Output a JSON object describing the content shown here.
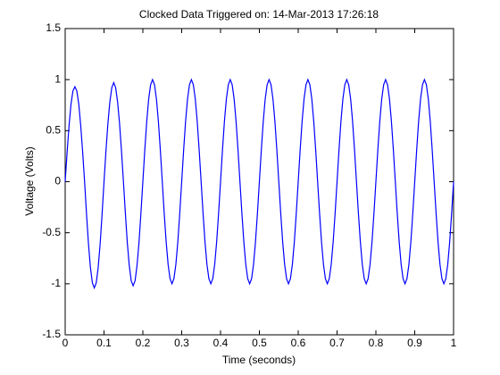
{
  "chart_data": {
    "type": "line",
    "title": "Clocked Data Triggered on: 14-Mar-2013 17:26:18",
    "x_label": "Time (seconds)",
    "y_label": "Voltage (Volts)",
    "xlim": [
      0,
      1
    ],
    "ylim": [
      -1.5,
      1.5
    ],
    "xticks": [
      0,
      0.1,
      0.2,
      0.3,
      0.4,
      0.5,
      0.6,
      0.7,
      0.8,
      0.9,
      1
    ],
    "yticks": [
      -1.5,
      -1,
      -0.5,
      0,
      0.5,
      1,
      1.5
    ],
    "grid": false,
    "x": [
      0,
      0.005,
      0.01,
      0.015,
      0.02,
      0.025,
      0.03,
      0.035,
      0.04,
      0.045,
      0.05,
      0.055,
      0.06,
      0.065,
      0.07,
      0.075,
      0.08,
      0.085,
      0.09,
      0.095,
      0.1,
      0.105,
      0.11,
      0.115,
      0.12,
      0.125,
      0.13,
      0.135,
      0.14,
      0.145,
      0.15,
      0.155,
      0.16,
      0.165,
      0.17,
      0.175,
      0.18,
      0.185,
      0.19,
      0.195,
      0.2,
      0.205,
      0.21,
      0.215,
      0.22,
      0.225,
      0.23,
      0.235,
      0.24,
      0.245,
      0.25,
      0.255,
      0.26,
      0.265,
      0.27,
      0.275,
      0.28,
      0.285,
      0.29,
      0.295,
      0.3,
      0.305,
      0.31,
      0.315,
      0.32,
      0.325,
      0.33,
      0.335,
      0.34,
      0.345,
      0.35,
      0.355,
      0.36,
      0.365,
      0.37,
      0.375,
      0.38,
      0.385,
      0.39,
      0.395,
      0.4,
      0.405,
      0.41,
      0.415,
      0.42,
      0.425,
      0.43,
      0.435,
      0.44,
      0.445,
      0.45,
      0.455,
      0.46,
      0.465,
      0.47,
      0.475,
      0.48,
      0.485,
      0.49,
      0.495,
      0.5,
      0.505,
      0.51,
      0.515,
      0.52,
      0.525,
      0.53,
      0.535,
      0.54,
      0.545,
      0.55,
      0.555,
      0.56,
      0.565,
      0.57,
      0.575,
      0.58,
      0.585,
      0.59,
      0.595,
      0.6,
      0.605,
      0.61,
      0.615,
      0.62,
      0.625,
      0.63,
      0.635,
      0.64,
      0.645,
      0.65,
      0.655,
      0.66,
      0.665,
      0.67,
      0.675,
      0.68,
      0.685,
      0.69,
      0.695,
      0.7,
      0.705,
      0.71,
      0.715,
      0.72,
      0.725,
      0.73,
      0.735,
      0.74,
      0.745,
      0.75,
      0.755,
      0.76,
      0.765,
      0.77,
      0.775,
      0.78,
      0.785,
      0.79,
      0.795,
      0.8,
      0.805,
      0.81,
      0.815,
      0.82,
      0.825,
      0.83,
      0.835,
      0.84,
      0.845,
      0.85,
      0.855,
      0.86,
      0.865,
      0.87,
      0.875,
      0.88,
      0.885,
      0.89,
      0.895,
      0.9,
      0.905,
      0.91,
      0.915,
      0.92,
      0.925,
      0.93,
      0.935,
      0.94,
      0.945,
      0.95,
      0.955,
      0.96,
      0.965,
      0.97,
      0.975,
      0.98,
      0.985,
      0.99,
      0.995,
      1
    ],
    "series": [
      {
        "color": "#0000ff",
        "values": [
          0,
          0.29,
          0.55,
          0.76,
          0.89,
          0.93,
          0.89,
          0.76,
          0.55,
          0.29,
          0,
          -0.32,
          -0.61,
          -0.84,
          -0.99,
          -1.04,
          -0.99,
          -0.84,
          -0.61,
          -0.32,
          0,
          0.3,
          0.57,
          0.78,
          0.92,
          0.97,
          0.92,
          0.78,
          0.57,
          0.3,
          0,
          -0.31,
          -0.6,
          -0.82,
          -0.97,
          -1.02,
          -0.97,
          -0.82,
          -0.6,
          -0.31,
          0,
          0.31,
          0.59,
          0.81,
          0.95,
          1,
          0.95,
          0.81,
          0.59,
          0.31,
          0,
          -0.31,
          -0.59,
          -0.81,
          -0.95,
          -1,
          -0.95,
          -0.81,
          -0.59,
          -0.31,
          0,
          0.31,
          0.59,
          0.81,
          0.95,
          1,
          0.95,
          0.81,
          0.59,
          0.31,
          0,
          -0.31,
          -0.59,
          -0.81,
          -0.95,
          -1,
          -0.95,
          -0.81,
          -0.59,
          -0.31,
          0,
          0.31,
          0.59,
          0.81,
          0.95,
          1,
          0.95,
          0.81,
          0.59,
          0.31,
          0,
          -0.31,
          -0.59,
          -0.81,
          -0.95,
          -1,
          -0.95,
          -0.81,
          -0.59,
          -0.31,
          0,
          0.31,
          0.59,
          0.81,
          0.95,
          1,
          0.95,
          0.81,
          0.59,
          0.31,
          0,
          -0.31,
          -0.59,
          -0.81,
          -0.95,
          -1,
          -0.95,
          -0.81,
          -0.59,
          -0.31,
          0,
          0.31,
          0.59,
          0.81,
          0.95,
          1,
          0.95,
          0.81,
          0.59,
          0.31,
          0,
          -0.31,
          -0.59,
          -0.81,
          -0.95,
          -1,
          -0.95,
          -0.81,
          -0.59,
          -0.31,
          0,
          0.31,
          0.59,
          0.81,
          0.95,
          1,
          0.95,
          0.81,
          0.59,
          0.31,
          0,
          -0.31,
          -0.59,
          -0.81,
          -0.95,
          -1,
          -0.95,
          -0.81,
          -0.59,
          -0.31,
          0,
          0.31,
          0.59,
          0.81,
          0.95,
          1,
          0.95,
          0.81,
          0.59,
          0.31,
          0,
          -0.31,
          -0.59,
          -0.81,
          -0.95,
          -1,
          -0.95,
          -0.81,
          -0.59,
          -0.31,
          0,
          0.31,
          0.59,
          0.81,
          0.95,
          1,
          0.95,
          0.81,
          0.59,
          0.31,
          0,
          -0.31,
          -0.59,
          -0.81,
          -0.95,
          -1,
          -0.95,
          -0.81,
          -0.59,
          -0.31,
          0
        ]
      }
    ]
  }
}
